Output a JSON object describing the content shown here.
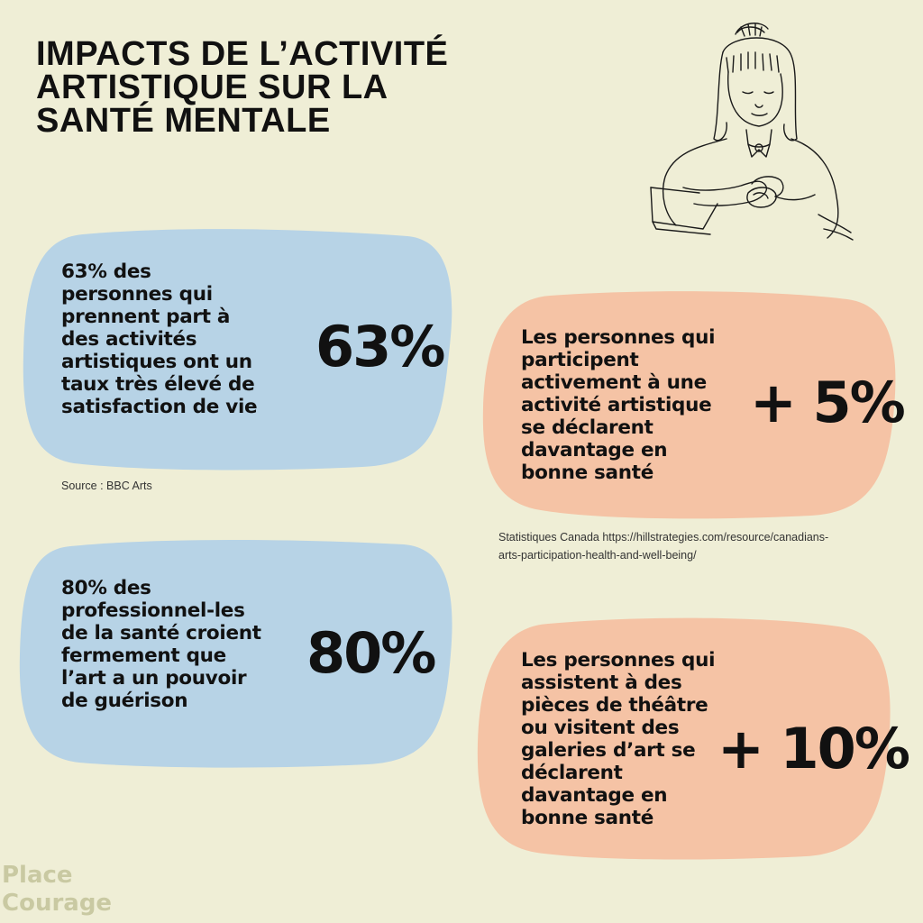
{
  "title_lines": [
    "IMPACTS DE L’ACTIVITÉ",
    "ARTISTIQUE SUR LA",
    "SANTÉ MENTALE"
  ],
  "colors": {
    "background": "#efeed6",
    "blue_card": "#b7d3e6",
    "peach_card": "#f5c3a5",
    "text": "#111111",
    "brand": "#c9c9a2"
  },
  "illustration": {
    "icon": "woman-crafting-sketch-icon"
  },
  "cards": {
    "satisfaction": {
      "lines": [
        "63% des",
        "personnes qui",
        "prennent part à",
        "des activités",
        "artistiques ont un",
        "taux très élevé de",
        "satisfaction de vie"
      ],
      "stat": "63%",
      "source": "Source : BBC Arts"
    },
    "healing": {
      "lines": [
        "80% des",
        "professionnel-les",
        "de la santé croient",
        "fermement que",
        "l’art a un pouvoir",
        "de guérison"
      ],
      "stat": "80%"
    },
    "participation": {
      "lines": [
        "Les personnes qui",
        "participent",
        "activement à une",
        "activité artistique",
        "se déclarent",
        "davantage en",
        "bonne santé"
      ],
      "stat": "+ 5%",
      "source_lines": [
        "Statistiques Canada https://hillstrategies.com/resource/canadians-",
        "arts-participation-health-and-well-being/"
      ]
    },
    "attendance": {
      "lines": [
        "Les personnes qui",
        "assistent à des",
        "pièces de théâtre",
        "ou visitent des",
        "galeries d’art se",
        "déclarent",
        "davantage en",
        "bonne santé"
      ],
      "stat": "+ 10%"
    }
  },
  "brand_lines": [
    "Place",
    "Courage"
  ]
}
